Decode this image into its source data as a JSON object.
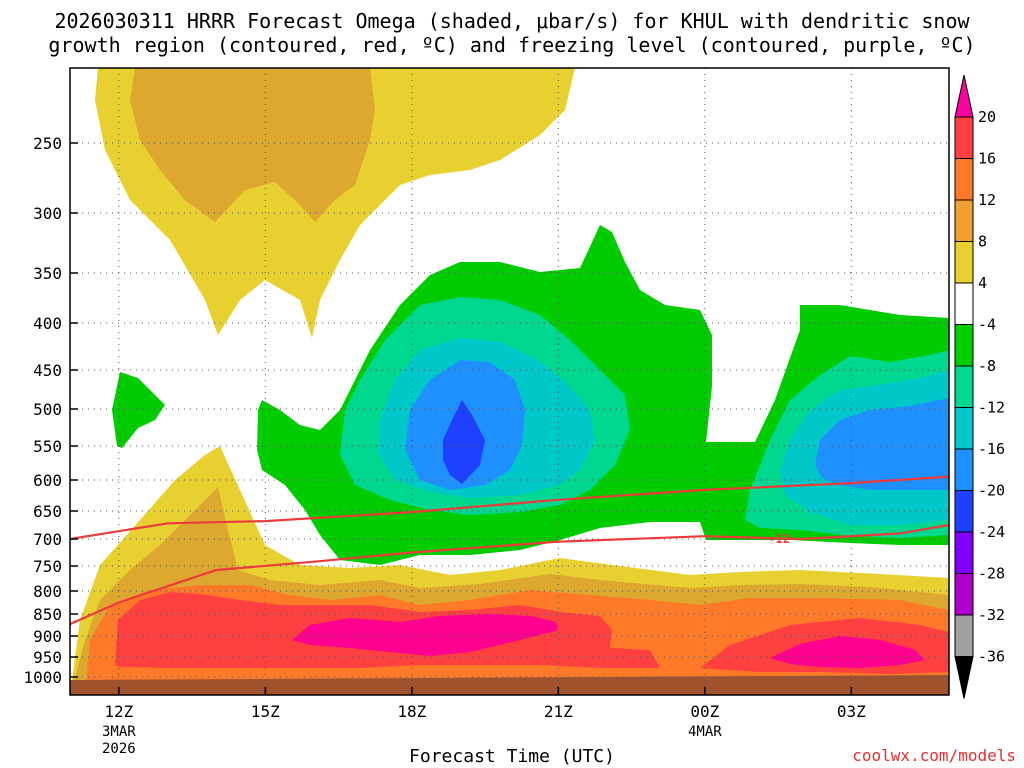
{
  "title": {
    "line1": "2026030311 HRRR Forecast Omega (shaded, μbar/s) for KHUL with dendritic snow",
    "line2": "growth region (contoured, red, ºC) and freezing level (contoured, purple, ºC)"
  },
  "xlabel": "Forecast Time (UTC)",
  "credit": "coolwx.com/models",
  "chart_data": {
    "type": "heatmap",
    "title": "2026030311 HRRR Forecast Omega (shaded, μbar/s) for KHUL with dendritic snow growth region (contoured, red, ºC) and freezing level (contoured, purple, ºC)",
    "xlabel": "Forecast Time (UTC)",
    "ylabel": "",
    "x_ticks": [
      {
        "hour": 12,
        "label": "12Z",
        "date1": "3MAR",
        "date2": "2026"
      },
      {
        "hour": 15,
        "label": "15Z",
        "date1": "",
        "date2": ""
      },
      {
        "hour": 18,
        "label": "18Z",
        "date1": "",
        "date2": ""
      },
      {
        "hour": 21,
        "label": "21Z",
        "date1": "",
        "date2": ""
      },
      {
        "hour": 24,
        "label": "00Z",
        "date1": "4MAR",
        "date2": ""
      },
      {
        "hour": 27,
        "label": "03Z",
        "date1": "",
        "date2": ""
      }
    ],
    "xlim": [
      11,
      29
    ],
    "y_ticks": [
      250,
      300,
      350,
      400,
      450,
      500,
      550,
      600,
      650,
      700,
      750,
      800,
      850,
      900,
      950,
      1000
    ],
    "ylim": [
      200,
      1000
    ],
    "grid": true,
    "colorbar": {
      "levels": [
        "20",
        "16",
        "12",
        "8",
        "4",
        "-4",
        "-8",
        "-12",
        "-16",
        "-20",
        "-24",
        "-28",
        "-32",
        "-36"
      ],
      "colors": [
        "#ff00a0",
        "#ff4040",
        "#ff7a28",
        "#f0a030",
        "#e8d030",
        "#ffffff",
        "#00d000",
        "#00d890",
        "#00c8c8",
        "#1e90ff",
        "#2040ff",
        "#8000ff",
        "#b000d0",
        "#a0a0a0",
        "#000000"
      ]
    },
    "omega_regions": [
      {
        "value_range": "4 to 8",
        "color": "#e8d030",
        "peak_hour": 13.5,
        "peak_pressure": 230
      },
      {
        "value_range": "8 to 12",
        "color": "#dda830",
        "peak_hour": 14.3,
        "peak_pressure": 240
      },
      {
        "value_range": "-4 to -8",
        "color": "#00cc00",
        "peak_hour": 19.5,
        "peak_pressure": 520
      },
      {
        "value_range": "-8 to -12",
        "color": "#00d890",
        "peak_hour": 19.2,
        "peak_pressure": 520
      },
      {
        "value_range": "-12 to -16",
        "color": "#00c8c8",
        "peak_hour": 19.0,
        "peak_pressure": 525
      },
      {
        "value_range": "-16 to -20",
        "color": "#1e90ff",
        "peak_hour": 19.0,
        "peak_pressure": 530
      },
      {
        "value_range": "-20 to -24",
        "color": "#2040ff",
        "peak_hour": 19.0,
        "peak_pressure": 545
      },
      {
        "value_range": "12 to 16",
        "color": "#ff7a28",
        "peak_hour": 18.0,
        "peak_pressure": 880
      },
      {
        "value_range": "16 to 20",
        "color": "#ff4040",
        "peak_hour": 18.0,
        "peak_pressure": 900
      },
      {
        "value_range": "> 20",
        "color": "#ff0090",
        "peak_hour": 18.0,
        "peak_pressure": 905
      }
    ],
    "red_contours": [
      {
        "label": "",
        "path_hours_pressure": [
          [
            11,
            700
          ],
          [
            13,
            672
          ],
          [
            15,
            668
          ],
          [
            18,
            652
          ],
          [
            21,
            632
          ],
          [
            24,
            616
          ],
          [
            27,
            605
          ],
          [
            29,
            595
          ]
        ]
      },
      {
        "label": "-12",
        "path_hours_pressure": [
          [
            11,
            873
          ],
          [
            12,
            825
          ],
          [
            14,
            758
          ],
          [
            16,
            742
          ],
          [
            18,
            725
          ],
          [
            21,
            705
          ],
          [
            24,
            695
          ],
          [
            26,
            700
          ],
          [
            28,
            690
          ],
          [
            29,
            675
          ]
        ]
      }
    ]
  }
}
